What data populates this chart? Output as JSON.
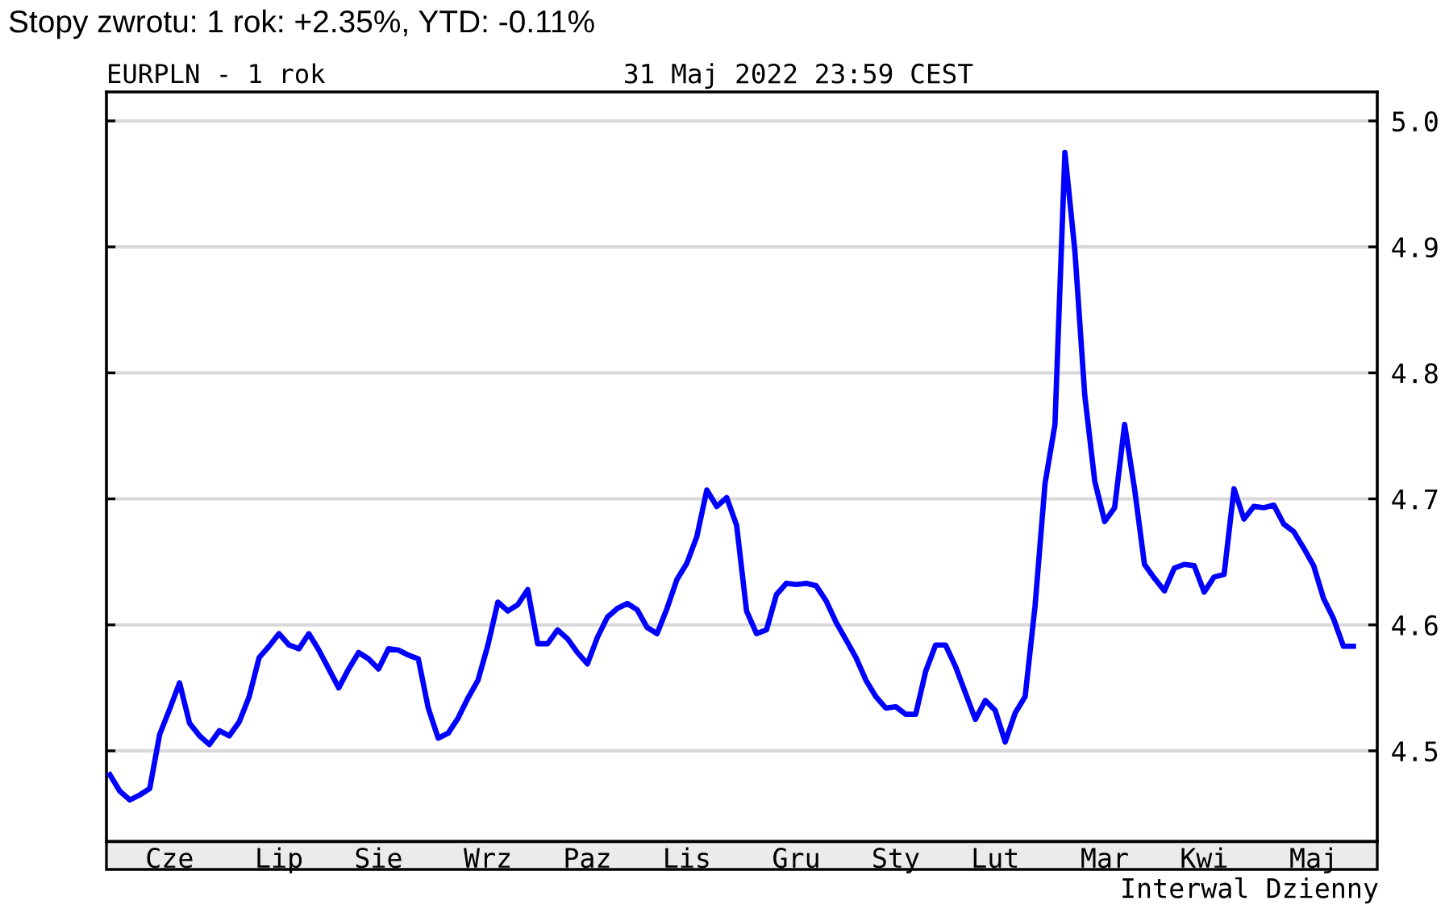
{
  "chart_data": {
    "type": "line",
    "title": "EURPLN - 1 rok",
    "subtitle": "31 Maj 2022 23:59 CEST",
    "annotations": [
      "Stopy zwrotu: 1 rok: +2.35%, YTD: -0.11%",
      "Interwal Dzienny"
    ],
    "categories": [
      null,
      null,
      null,
      null,
      null,
      null,
      "Cze",
      null,
      null,
      null,
      null,
      null,
      null,
      null,
      null,
      null,
      null,
      "Lip",
      null,
      null,
      null,
      null,
      null,
      null,
      null,
      null,
      null,
      "Sie",
      null,
      null,
      null,
      null,
      null,
      null,
      null,
      null,
      null,
      null,
      "Wrz",
      null,
      null,
      null,
      null,
      null,
      null,
      null,
      null,
      null,
      "Paz",
      null,
      null,
      null,
      null,
      null,
      null,
      null,
      null,
      null,
      "Lis",
      null,
      null,
      null,
      null,
      null,
      null,
      null,
      null,
      null,
      null,
      "Gru",
      null,
      null,
      null,
      null,
      null,
      null,
      null,
      null,
      null,
      "Sty",
      null,
      null,
      null,
      null,
      null,
      null,
      null,
      null,
      null,
      "Lut",
      null,
      null,
      null,
      null,
      null,
      null,
      null,
      null,
      null,
      null,
      "Mar",
      null,
      null,
      null,
      null,
      null,
      null,
      null,
      null,
      null,
      "Kwi",
      null,
      null,
      null,
      null,
      null,
      null,
      null,
      null,
      null,
      null,
      "Maj",
      null,
      null,
      null,
      null
    ],
    "series": [
      {
        "color": "#0000ff",
        "values": [
          4.481,
          4.468,
          4.461,
          4.465,
          4.47,
          4.513,
          4.533,
          4.554,
          4.522,
          4.512,
          4.505,
          4.516,
          4.512,
          4.523,
          4.543,
          4.574,
          4.583,
          4.593,
          4.584,
          4.581,
          4.593,
          4.58,
          4.565,
          4.55,
          4.565,
          4.578,
          4.573,
          4.565,
          4.581,
          4.58,
          4.576,
          4.573,
          4.534,
          4.51,
          4.514,
          4.526,
          4.542,
          4.556,
          4.584,
          4.618,
          4.611,
          4.616,
          4.628,
          4.585,
          4.585,
          4.596,
          4.589,
          4.578,
          4.569,
          4.59,
          4.606,
          4.613,
          4.617,
          4.612,
          4.598,
          4.593,
          4.613,
          4.636,
          4.649,
          4.67,
          4.707,
          4.694,
          4.701,
          4.679,
          4.611,
          4.593,
          4.596,
          4.624,
          4.633,
          4.632,
          4.633,
          4.631,
          4.619,
          4.602,
          4.588,
          4.574,
          4.556,
          4.543,
          4.534,
          4.535,
          4.529,
          4.529,
          4.563,
          4.584,
          4.584,
          4.567,
          4.546,
          4.525,
          4.54,
          4.532,
          4.507,
          4.53,
          4.543,
          4.615,
          4.712,
          4.759,
          4.975,
          4.897,
          4.782,
          4.714,
          4.682,
          4.693,
          4.759,
          4.708,
          4.648,
          4.637,
          4.627,
          4.645,
          4.648,
          4.647,
          4.626,
          4.638,
          4.64,
          4.708,
          4.684,
          4.694,
          4.693,
          4.695,
          4.68,
          4.674,
          4.661,
          4.647,
          4.621,
          4.605,
          4.583,
          4.583
        ]
      }
    ],
    "ylim": [
      4.428,
      5.023
    ],
    "yticks": [
      4.5,
      4.6,
      4.7,
      4.8,
      4.9,
      {
        "value": 5,
        "label": "5.0"
      }
    ],
    "grid": "y",
    "line_style": "solid"
  }
}
